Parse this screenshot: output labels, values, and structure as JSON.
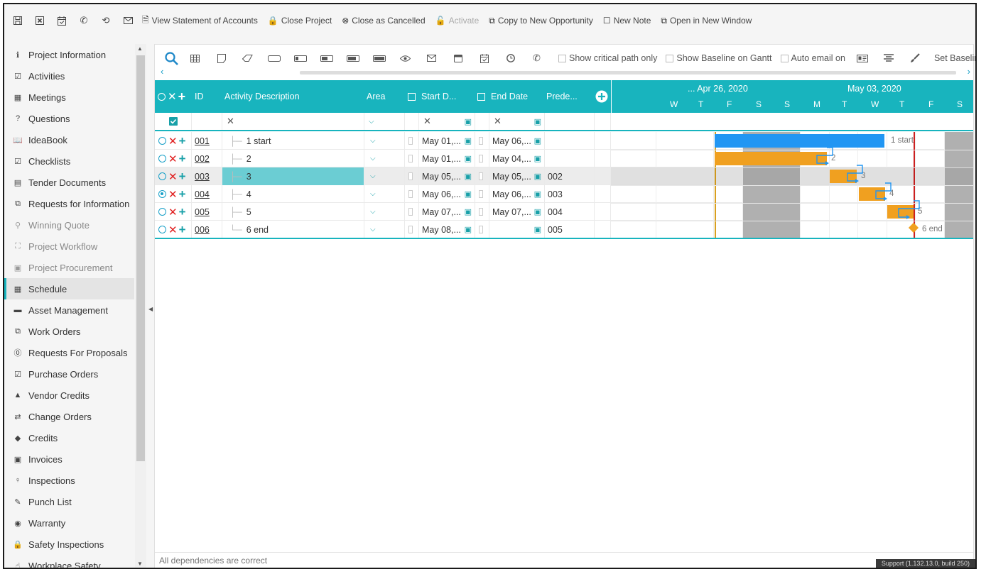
{
  "toolbar": {
    "icons": [
      "save-icon",
      "close-box-icon",
      "calendar-check-icon",
      "phone-icon",
      "history-icon",
      "mail-icon"
    ],
    "buttons": [
      {
        "name": "view-statement-button",
        "icon": "🗎",
        "label": "View Statement of Accounts",
        "disabled": false
      },
      {
        "name": "close-project-button",
        "icon": "🔒",
        "label": "Close Project",
        "disabled": false
      },
      {
        "name": "close-as-cancelled-button",
        "icon": "⊗",
        "label": "Close as Cancelled",
        "disabled": false
      },
      {
        "name": "activate-button",
        "icon": "🔓",
        "label": "Activate",
        "disabled": true
      },
      {
        "name": "copy-to-new-opportunity-button",
        "icon": "⧉",
        "label": "Copy to New Opportunity",
        "disabled": false
      },
      {
        "name": "new-note-button",
        "icon": "☐",
        "label": "New Note",
        "disabled": false
      },
      {
        "name": "open-in-new-window-button",
        "icon": "⧉",
        "label": "Open in New Window",
        "disabled": false
      }
    ]
  },
  "sidebar": {
    "items": [
      {
        "label": "Project Information",
        "icon": "info-icon",
        "glyph": "ℹ",
        "state": "normal"
      },
      {
        "label": "Activities",
        "icon": "calendar-check-icon",
        "glyph": "☑",
        "state": "normal"
      },
      {
        "label": "Meetings",
        "icon": "calendar-icon",
        "glyph": "▦",
        "state": "normal"
      },
      {
        "label": "Questions",
        "icon": "question-icon",
        "glyph": "?",
        "state": "normal"
      },
      {
        "label": "IdeaBook",
        "icon": "book-icon",
        "glyph": "📖",
        "state": "normal"
      },
      {
        "label": "Checklists",
        "icon": "checklist-icon",
        "glyph": "☑",
        "state": "normal"
      },
      {
        "label": "Tender Documents",
        "icon": "document-icon",
        "glyph": "▤",
        "state": "normal"
      },
      {
        "label": "Requests for Information",
        "icon": "copy-icon",
        "glyph": "⧉",
        "state": "normal"
      },
      {
        "label": "Winning Quote",
        "icon": "search-icon",
        "glyph": "⚲",
        "state": "dim"
      },
      {
        "label": "Project Workflow",
        "icon": "workflow-icon",
        "glyph": "⛶",
        "state": "dim"
      },
      {
        "label": "Project Procurement",
        "icon": "procurement-icon",
        "glyph": "▣",
        "state": "dim"
      },
      {
        "label": "Schedule",
        "icon": "schedule-icon",
        "glyph": "▦",
        "state": "active"
      },
      {
        "label": "Asset Management",
        "icon": "archive-icon",
        "glyph": "▬",
        "state": "normal"
      },
      {
        "label": "Work Orders",
        "icon": "work-order-icon",
        "glyph": "⧉",
        "state": "normal"
      },
      {
        "label": "Requests For Proposals",
        "icon": "help-circle-icon",
        "glyph": "⓪",
        "state": "normal"
      },
      {
        "label": "Purchase Orders",
        "icon": "check-square-icon",
        "glyph": "☑",
        "state": "normal"
      },
      {
        "label": "Vendor Credits",
        "icon": "warning-icon",
        "glyph": "▲",
        "state": "normal"
      },
      {
        "label": "Change Orders",
        "icon": "exchange-icon",
        "glyph": "⇄",
        "state": "normal"
      },
      {
        "label": "Credits",
        "icon": "tags-icon",
        "glyph": "◆",
        "state": "normal"
      },
      {
        "label": "Invoices",
        "icon": "money-icon",
        "glyph": "▣",
        "state": "normal"
      },
      {
        "label": "Inspections",
        "icon": "lightbulb-icon",
        "glyph": "♀",
        "state": "normal"
      },
      {
        "label": "Punch List",
        "icon": "edit-icon",
        "glyph": "✎",
        "state": "normal"
      },
      {
        "label": "Warranty",
        "icon": "dot-circle-icon",
        "glyph": "◉",
        "state": "normal"
      },
      {
        "label": "Safety Inspections",
        "icon": "lock-icon",
        "glyph": "🔒",
        "state": "normal"
      },
      {
        "label": "Workplace Safety",
        "icon": "hand-icon",
        "glyph": "☝",
        "state": "normal"
      }
    ]
  },
  "gantt_toolbar": {
    "options": [
      {
        "name": "show-critical-path-checkbox",
        "label": "Show critical path only"
      },
      {
        "name": "show-baseline-checkbox",
        "label": "Show Baseline on Gantt"
      },
      {
        "name": "auto-email-checkbox",
        "label": "Auto email on"
      }
    ],
    "set_baseline_label": "Set Baseline"
  },
  "grid": {
    "columns": {
      "id": "ID",
      "description": "Activity Description",
      "area": "Area",
      "start": "Start D...",
      "end": "End Date",
      "predecessors": "Prede..."
    },
    "timeline": {
      "week1": "... Apr 26, 2020",
      "week2": "May 03, 2020",
      "days": [
        "W",
        "T",
        "F",
        "S",
        "S",
        "M",
        "T",
        "W",
        "T",
        "F",
        "S"
      ]
    },
    "rows": [
      {
        "id": "001",
        "desc": "1 start",
        "start": "May 01,...",
        "end": "May 06,...",
        "pred": "",
        "selected_radio": false,
        "highlight": false
      },
      {
        "id": "002",
        "desc": "2",
        "start": "May 01,...",
        "end": "May 04,...",
        "pred": "",
        "selected_radio": false,
        "highlight": false
      },
      {
        "id": "003",
        "desc": "3",
        "start": "May 05,...",
        "end": "May 05,...",
        "pred": "002",
        "selected_radio": false,
        "highlight": true
      },
      {
        "id": "004",
        "desc": "4",
        "start": "May 06,...",
        "end": "May 06,...",
        "pred": "003",
        "selected_radio": true,
        "highlight": false
      },
      {
        "id": "005",
        "desc": "5",
        "start": "May 07,...",
        "end": "May 07,...",
        "pred": "004",
        "selected_radio": false,
        "highlight": false
      },
      {
        "id": "006",
        "desc": "6 end",
        "start": "May 08,...",
        "end": "",
        "pred": "005",
        "selected_radio": false,
        "highlight": false
      }
    ],
    "bar_labels": [
      "1 start",
      "2",
      "3",
      "4",
      "5",
      "6 end"
    ]
  },
  "colors": {
    "accent": "#18b4be",
    "summary_bar": "#2196f3",
    "task_bar": "#f0a020",
    "today_line": "#cc2020",
    "weekend": "#b0b0b0"
  },
  "status": {
    "message": "All dependencies are correct",
    "support": "Support (1.132.13.0, build 250)"
  }
}
